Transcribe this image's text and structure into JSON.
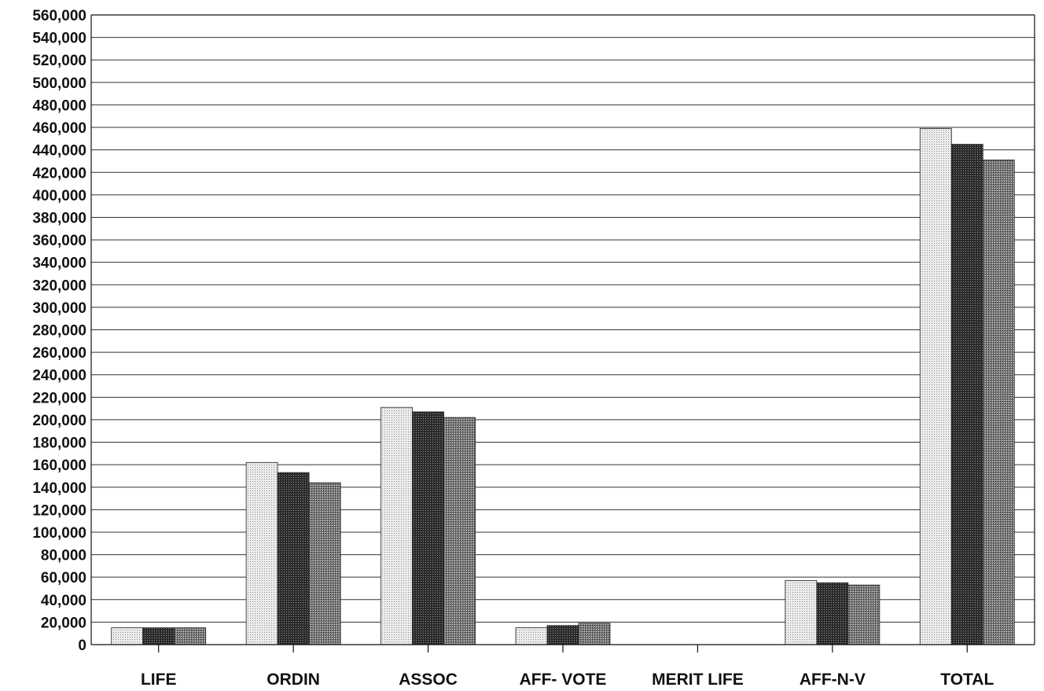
{
  "chart_data": {
    "type": "bar",
    "title": "",
    "xlabel": "",
    "ylabel": "",
    "categories": [
      "LIFE",
      "ORDIN",
      "ASSOC",
      "AFF- VOTE",
      "MERIT LIFE",
      "AFF-N-V",
      "TOTAL"
    ],
    "series": [
      {
        "values": [
          15000,
          162000,
          211000,
          15000,
          0,
          57000,
          459000
        ]
      },
      {
        "values": [
          15000,
          153000,
          207000,
          17000,
          0,
          55000,
          445000
        ]
      },
      {
        "values": [
          15000,
          144000,
          202000,
          19000,
          0,
          53000,
          431000
        ]
      }
    ],
    "ylim": [
      0,
      560000
    ],
    "ytick_step": 20000,
    "ytick_labels": [
      "0",
      "20,000",
      "40,000",
      "60,000",
      "80,000",
      "100,000",
      "120,000",
      "140,000",
      "160,000",
      "180,000",
      "200,000",
      "220,000",
      "240,000",
      "260,000",
      "280,000",
      "300,000",
      "320,000",
      "340,000",
      "360,000",
      "380,000",
      "400,000",
      "420,000",
      "440,000",
      "460,000",
      "480,000",
      "500,000",
      "520,000",
      "540,000",
      "560,000"
    ],
    "grid": true,
    "legend": "none",
    "series_fills": [
      "light dotted",
      "dark crosshatch",
      "medium crosshatch"
    ]
  }
}
